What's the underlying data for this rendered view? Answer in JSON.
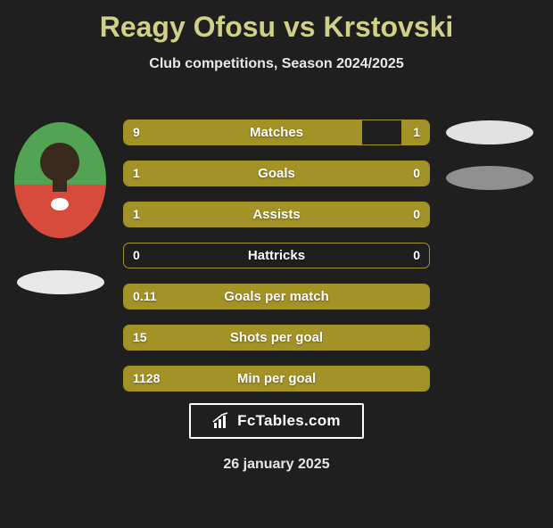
{
  "title": "Reagy Ofosu vs Krstovski",
  "subtitle": "Club competitions, Season 2024/2025",
  "date": "26 january 2025",
  "brand": {
    "text": "FcTables.com"
  },
  "colors": {
    "bar_fill": "#a39326",
    "bar_border": "#a39326",
    "title_color": "#d0d088",
    "text_color": "#ffffff",
    "bg": "#1f1f1f",
    "logo_oval_left": "#e8e8e8",
    "logo_oval_right_top": "#e2e2e2",
    "logo_oval_right_bottom": "#8f8f8f"
  },
  "rows": [
    {
      "label": "Matches",
      "left": "9",
      "right": "1",
      "left_pct": 78,
      "right_pct": 9
    },
    {
      "label": "Goals",
      "left": "1",
      "right": "0",
      "left_pct": 100,
      "right_pct": 0
    },
    {
      "label": "Assists",
      "left": "1",
      "right": "0",
      "left_pct": 100,
      "right_pct": 0
    },
    {
      "label": "Hattricks",
      "left": "0",
      "right": "0",
      "left_pct": 0,
      "right_pct": 0
    },
    {
      "label": "Goals per match",
      "left": "0.11",
      "right": "",
      "left_pct": 100,
      "right_pct": 0
    },
    {
      "label": "Shots per goal",
      "left": "15",
      "right": "",
      "left_pct": 100,
      "right_pct": 0
    },
    {
      "label": "Min per goal",
      "left": "1128",
      "right": "",
      "left_pct": 100,
      "right_pct": 0
    }
  ]
}
